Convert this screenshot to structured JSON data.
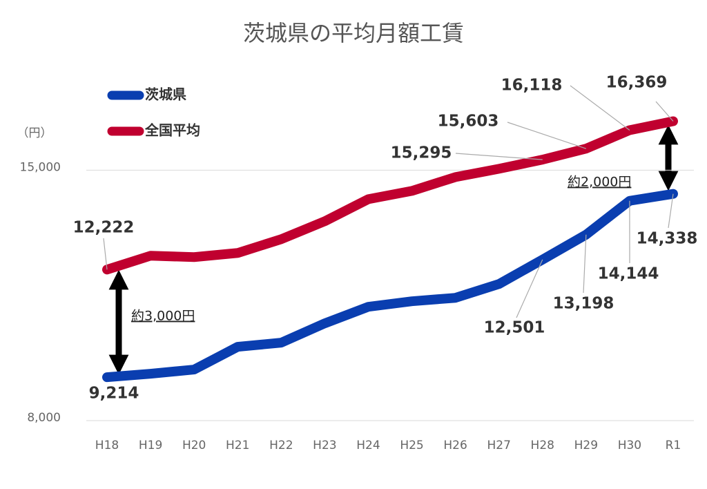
{
  "chart_data": {
    "type": "line",
    "title": "茨城県の平均月額工賃",
    "y_unit": "（円）",
    "categories": [
      "H18",
      "H19",
      "H20",
      "H21",
      "H22",
      "H23",
      "H24",
      "H25",
      "H26",
      "H27",
      "H28",
      "H29",
      "H30",
      "R1"
    ],
    "series": [
      {
        "name": "茨城県",
        "color": "#0a3eb0",
        "values": [
          9214,
          9311,
          9427,
          10063,
          10179,
          10719,
          11182,
          11336,
          11432,
          11818,
          12501,
          13198,
          14144,
          14338
        ],
        "value_labels": [
          "9,214",
          null,
          null,
          null,
          null,
          null,
          null,
          null,
          null,
          null,
          "12,501",
          "13,198",
          "14,144",
          "14,338"
        ]
      },
      {
        "name": "全国平均",
        "color": "#c0002f",
        "values": [
          12222,
          12609,
          12570,
          12686,
          13071,
          13573,
          14190,
          14421,
          14807,
          15038,
          15295,
          15603,
          16118,
          16369
        ],
        "value_labels": [
          "12,222",
          null,
          null,
          null,
          null,
          null,
          null,
          null,
          null,
          null,
          "15,295",
          "15,603",
          "16,118",
          "16,369"
        ]
      }
    ],
    "annotations": [
      "約3,000円",
      "約2,000円"
    ],
    "ylim": [
      8000,
      18000
    ],
    "yticks": [
      {
        "value": 8000,
        "label": "8,000"
      },
      {
        "value": 15000,
        "label": "15,000"
      }
    ],
    "grid": true,
    "legend": "top-left"
  }
}
